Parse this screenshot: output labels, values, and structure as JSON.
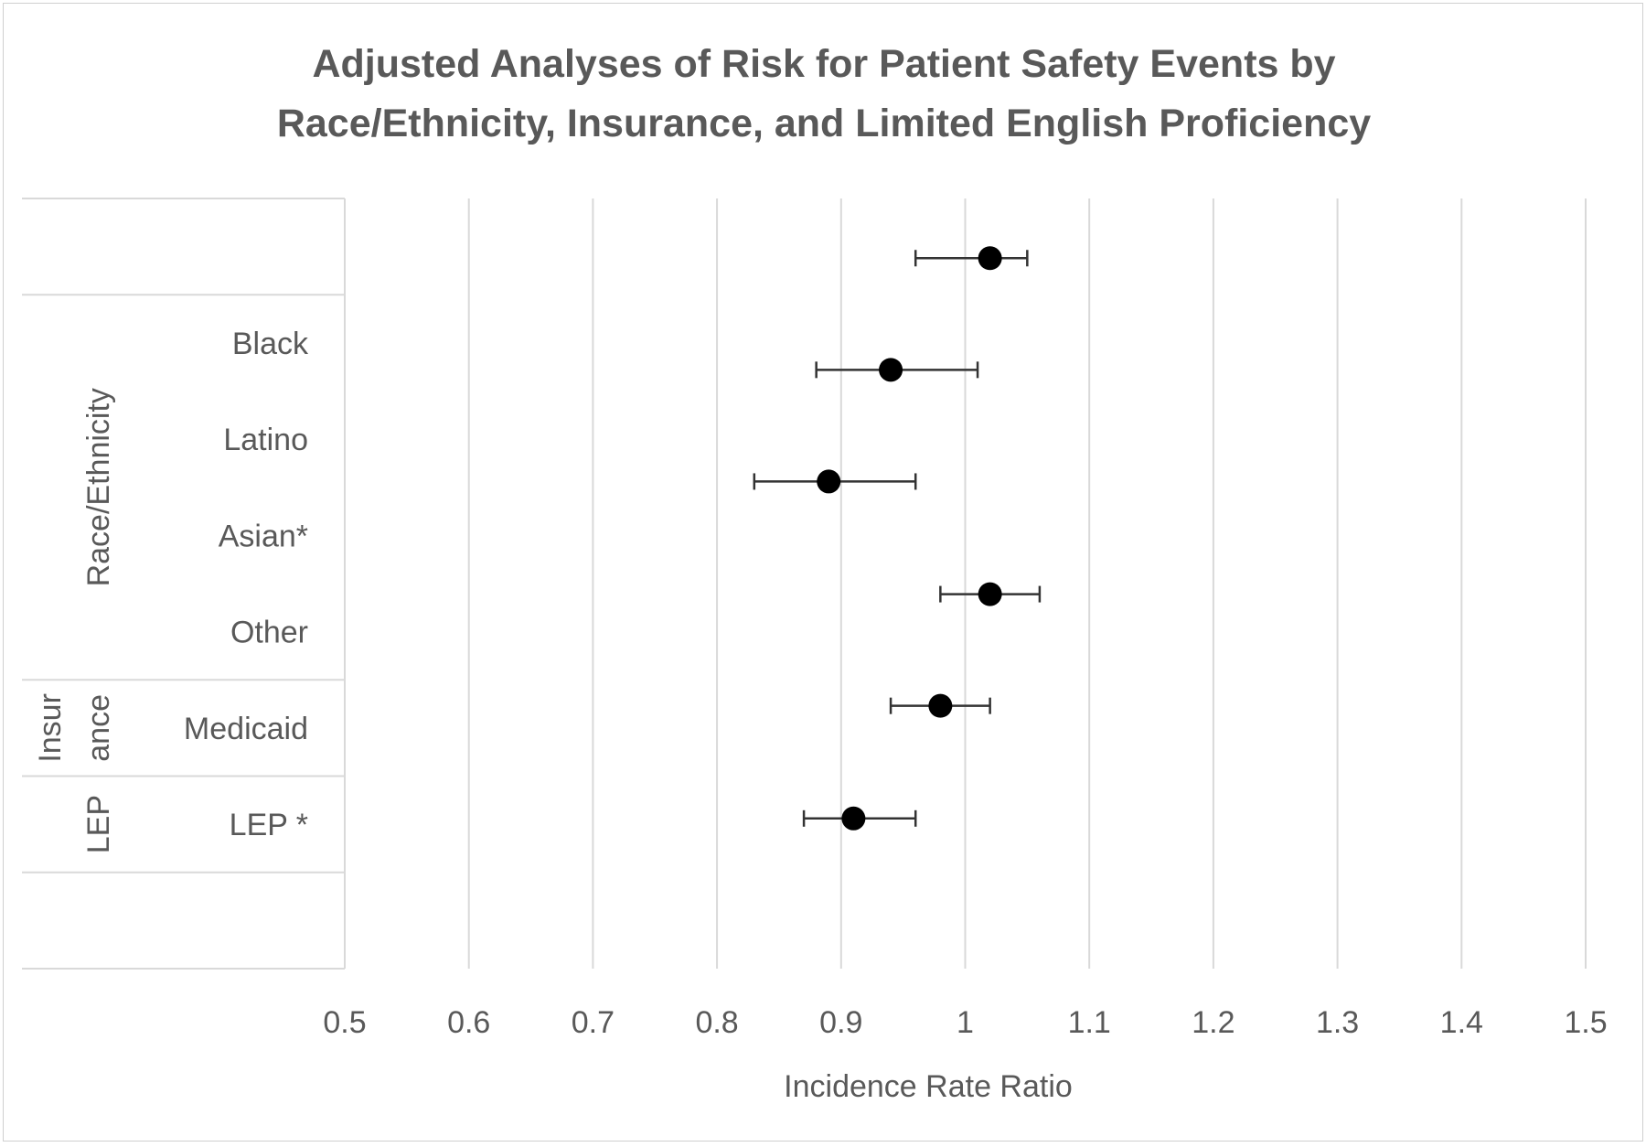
{
  "chart_data": {
    "type": "forest",
    "title_lines": [
      "Adjusted Analyses of Risk for Patient Safety Events by",
      "Race/Ethnicity, Insurance, and Limited English Proficiency"
    ],
    "xlabel": "Incidence Rate Ratio",
    "xlim": [
      0.5,
      1.5
    ],
    "xticks": [
      "0.5",
      "0.6",
      "0.7",
      "0.8",
      "0.9",
      "1",
      "1.1",
      "1.2",
      "1.3",
      "1.4",
      "1.5"
    ],
    "grid": true,
    "groups": [
      {
        "label": "Race/Ethnicity",
        "label_lines": [
          "Race/Ethnicity"
        ],
        "categories": [
          "Black",
          "Latino",
          "Asian*",
          "Other"
        ]
      },
      {
        "label": "Insurance",
        "label_lines": [
          "Insur",
          "ance"
        ],
        "categories": [
          "Medicaid"
        ]
      },
      {
        "label": "LEP",
        "label_lines": [
          "LEP"
        ],
        "categories": [
          "LEP *"
        ]
      }
    ],
    "series": [
      {
        "points": [
          {
            "category": "Black",
            "estimate": 1.02,
            "lower": 0.96,
            "upper": 1.05
          },
          {
            "category": "Latino",
            "estimate": 0.94,
            "lower": 0.88,
            "upper": 1.01
          },
          {
            "category": "Asian*",
            "estimate": 0.89,
            "lower": 0.83,
            "upper": 0.96
          },
          {
            "category": "Other",
            "estimate": 1.02,
            "lower": 0.98,
            "upper": 1.06
          },
          {
            "category": "Medicaid",
            "estimate": 0.98,
            "lower": 0.94,
            "upper": 1.02
          },
          {
            "category": "LEP *",
            "estimate": 0.91,
            "lower": 0.87,
            "upper": 0.96
          }
        ]
      }
    ]
  }
}
